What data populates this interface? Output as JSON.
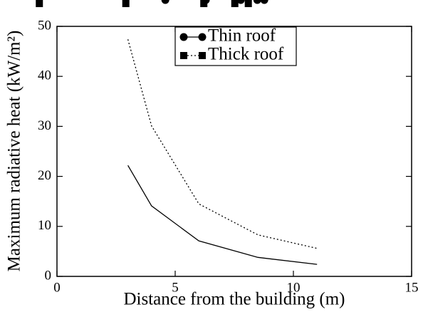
{
  "chart_data": {
    "type": "line",
    "x_label": "Distance from the building (m)",
    "y_label": "Maximum radiative heat (kW/m²)",
    "x": [
      3,
      4,
      6,
      8.5,
      11
    ],
    "series": [
      {
        "name": "Thin roof",
        "color": "#000000",
        "marker": "circle",
        "linestyle": "solid",
        "values": [
          22.2,
          14.1,
          7.1,
          3.8,
          2.4
        ]
      },
      {
        "name": "Thick roof",
        "color": "#000000",
        "marker": "square",
        "linestyle": "dotted",
        "values": [
          47.4,
          30.1,
          14.5,
          8.3,
          5.6
        ]
      }
    ],
    "xlim": [
      0,
      15
    ],
    "xticks": [
      0,
      5,
      10,
      15
    ],
    "ylim": [
      0,
      50
    ],
    "yticks": [
      0,
      10,
      20,
      30,
      40,
      50
    ],
    "legend": "upper center"
  }
}
